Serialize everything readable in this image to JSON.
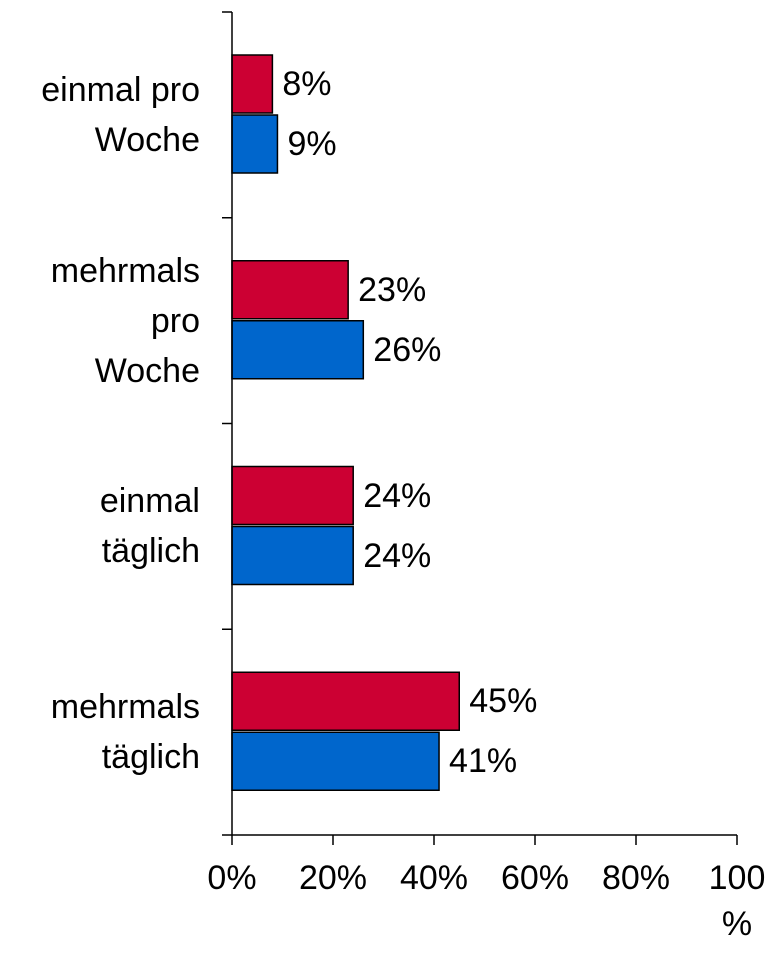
{
  "chart_data": {
    "type": "barh",
    "categories": [
      "einmal pro\nWoche",
      "mehrmals\npro\nWoche",
      "einmal\ntäglich",
      "mehrmals\ntäglich"
    ],
    "series": [
      {
        "color": "#cc0033",
        "values": [
          8,
          23,
          24,
          45
        ],
        "value_labels": [
          "8%",
          "23%",
          "24%",
          "45%"
        ]
      },
      {
        "color": "#0066cc",
        "values": [
          9,
          26,
          24,
          41
        ],
        "value_labels": [
          "9%",
          "26%",
          "24%",
          "41%"
        ]
      }
    ],
    "xlim": [
      0,
      100
    ],
    "xticks": [
      {
        "value": 0,
        "label": "0%"
      },
      {
        "value": 20,
        "label": "20%"
      },
      {
        "value": 40,
        "label": "40%"
      },
      {
        "value": 60,
        "label": "60%"
      },
      {
        "value": 80,
        "label": "80%"
      },
      {
        "value": 100,
        "label": "100\n%"
      }
    ]
  }
}
